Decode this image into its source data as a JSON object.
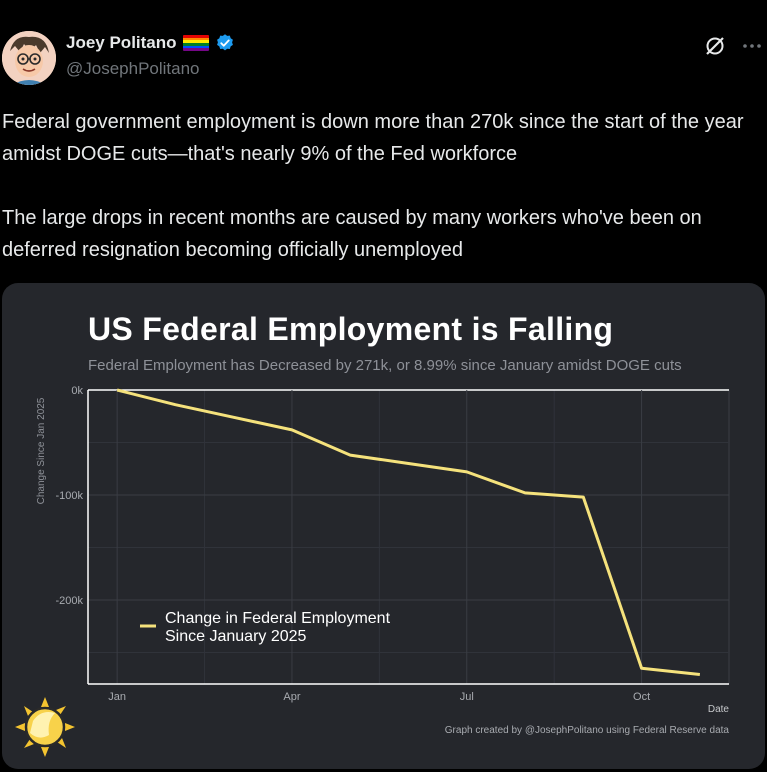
{
  "author": {
    "name": "Joey Politano",
    "handle": "@JosephPolitano"
  },
  "icons": [
    "avatar",
    "pride-flag-icon",
    "verified-badge-icon",
    "grok-icon",
    "more-icon",
    "sun-logo-icon"
  ],
  "tweet": {
    "text": "Federal government employment is down more than 270k since the start of the year amidst DOGE cuts—that's nearly 9% of the Fed workforce\n\nThe large drops in recent months are caused by many workers who've been on deferred resignation becoming officially unemployed"
  },
  "colors": {
    "line": "#f5e27c",
    "card": "#25272c",
    "accent": "#1d9bf0"
  },
  "chart_data": {
    "type": "line",
    "title": "US Federal Employment is Falling",
    "subtitle": "Federal Employment has Decreased by 271k, or 8.99% since January amidst DOGE cuts",
    "ylabel": "Change Since Jan 2025",
    "xlabel": "Date",
    "x_ticks": [
      {
        "label": "Jan",
        "month": 1
      },
      {
        "label": "Apr",
        "month": 4
      },
      {
        "label": "Jul",
        "month": 7
      },
      {
        "label": "Oct",
        "month": 10
      }
    ],
    "y_ticks": [
      {
        "label": "0k",
        "value": 0
      },
      {
        "label": "-100k",
        "value": -100
      },
      {
        "label": "-200k",
        "value": -200
      }
    ],
    "ylim": [
      -280,
      0
    ],
    "xlim": [
      0.5,
      11.5
    ],
    "grid": true,
    "legend_position": "bottom-left",
    "series": [
      {
        "name": "Change in Federal Employment Since January 2025",
        "legend_lines": [
          "Change in Federal Employment",
          "Since January 2025"
        ],
        "x": [
          1,
          2,
          3,
          4,
          5,
          6,
          7,
          8,
          9,
          10,
          11
        ],
        "y": [
          0,
          -14,
          -26,
          -38,
          -62,
          -70,
          -78,
          -98,
          -102,
          -265,
          -271
        ]
      }
    ],
    "credit": "Graph created by @JosephPolitano using Federal Reserve data"
  }
}
